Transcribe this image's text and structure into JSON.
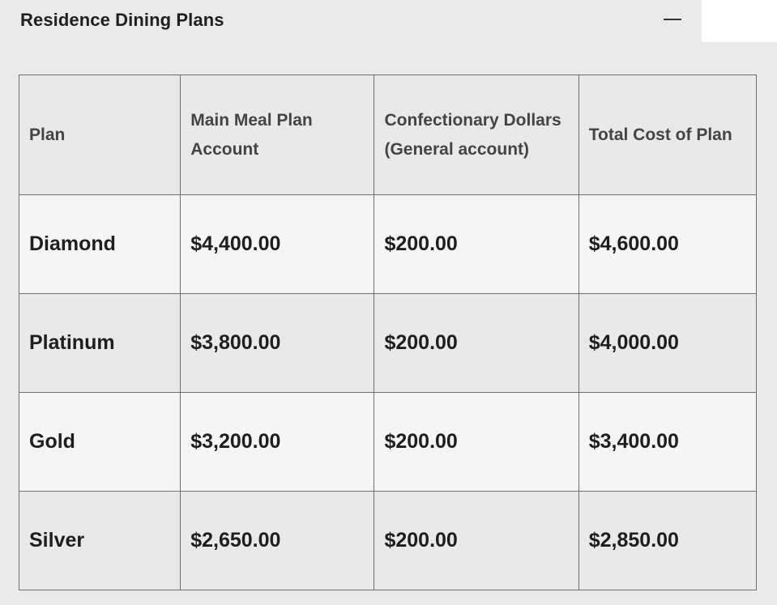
{
  "header": {
    "title": "Residence Dining Plans",
    "collapse_icon": "minus-icon"
  },
  "table": {
    "columns": [
      "Plan",
      "Main Meal Plan Account",
      "Confectionary Dollars (General account)",
      "Total Cost of Plan"
    ],
    "rows": [
      {
        "plan": "Diamond",
        "main": "$4,400.00",
        "confectionary": "$200.00",
        "total": "$4,600.00"
      },
      {
        "plan": "Platinum",
        "main": "$3,800.00",
        "confectionary": "$200.00",
        "total": "$4,000.00"
      },
      {
        "plan": "Gold",
        "main": "$3,200.00",
        "confectionary": "$200.00",
        "total": "$3,400.00"
      },
      {
        "plan": "Silver",
        "main": "$2,650.00",
        "confectionary": "$200.00",
        "total": "$2,850.00"
      }
    ]
  }
}
